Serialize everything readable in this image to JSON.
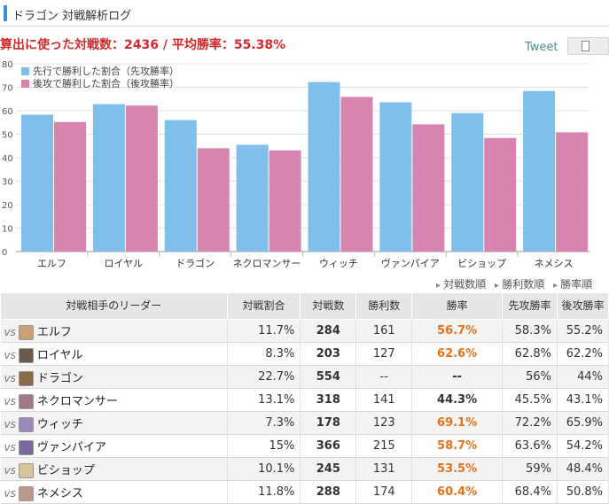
{
  "page": {
    "title": "ドラゴン 対戦解析ログ",
    "summary": "算出に使った対戦数：2436 / 平均勝率：55.38%",
    "tweet_label": "Tweet"
  },
  "colors": {
    "first": "#7fbfe9",
    "second": "#d884b0",
    "rate_highlight": "#e8701a"
  },
  "chart_data": {
    "type": "bar",
    "categories": [
      "エルフ",
      "ロイヤル",
      "ドラゴン",
      "ネクロマンサー",
      "ウィッチ",
      "ヴァンパイア",
      "ビショップ",
      "ネメシス"
    ],
    "series": [
      {
        "name": "先行で勝利した割合（先攻勝率）",
        "values": [
          58.3,
          62.8,
          56,
          45.5,
          72.2,
          63.6,
          59,
          68.4
        ]
      },
      {
        "name": "後攻で勝利した割合（後攻勝率）",
        "values": [
          55.2,
          62.2,
          44,
          43.1,
          65.9,
          54.2,
          48.4,
          50.8
        ]
      }
    ],
    "yticks": [
      0,
      10,
      20,
      30,
      40,
      50,
      60,
      70,
      80
    ],
    "ylim": [
      0,
      80
    ],
    "legend": "top-left",
    "grid": true
  },
  "sort": [
    "対戦数順",
    "勝利数順",
    "勝率順"
  ],
  "table": {
    "headers": [
      "対戦相手のリーダー",
      "対戦割合",
      "対戦数",
      "勝利数",
      "勝率",
      "先攻勝率",
      "後攻勝率"
    ],
    "vs": "vs",
    "rows": [
      {
        "leader": "エルフ",
        "share": "11.7%",
        "matches": "284",
        "wins": "161",
        "rate": "56.7%",
        "first": "58.3%",
        "second": "55.2%",
        "avatar": "#c9a27a"
      },
      {
        "leader": "ロイヤル",
        "share": "8.3%",
        "matches": "203",
        "wins": "127",
        "rate": "62.6%",
        "first": "62.8%",
        "second": "62.2%",
        "avatar": "#6b5a4e"
      },
      {
        "leader": "ドラゴン",
        "share": "22.7%",
        "matches": "554",
        "wins": "--",
        "rate": "--",
        "first": "56%",
        "second": "44%",
        "avatar": "#8a6a4a"
      },
      {
        "leader": "ネクロマンサー",
        "share": "13.1%",
        "matches": "318",
        "wins": "141",
        "rate": "44.3%",
        "first": "45.5%",
        "second": "43.1%",
        "avatar": "#a07a8a"
      },
      {
        "leader": "ウィッチ",
        "share": "7.3%",
        "matches": "178",
        "wins": "123",
        "rate": "69.1%",
        "first": "72.2%",
        "second": "65.9%",
        "avatar": "#9a8ab8"
      },
      {
        "leader": "ヴァンパイア",
        "share": "15%",
        "matches": "366",
        "wins": "215",
        "rate": "58.7%",
        "first": "63.6%",
        "second": "54.2%",
        "avatar": "#7a6a9a"
      },
      {
        "leader": "ビショップ",
        "share": "10.1%",
        "matches": "245",
        "wins": "131",
        "rate": "53.5%",
        "first": "59%",
        "second": "48.4%",
        "avatar": "#d8c49a"
      },
      {
        "leader": "ネメシス",
        "share": "11.8%",
        "matches": "288",
        "wins": "174",
        "rate": "60.4%",
        "first": "68.4%",
        "second": "50.8%",
        "avatar": "#b89a8a"
      }
    ]
  }
}
